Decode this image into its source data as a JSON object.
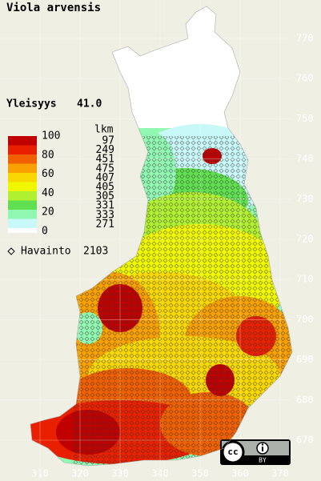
{
  "title": "Viola arvensis",
  "frequency": {
    "label": "Yleisyys",
    "value": "41.0"
  },
  "legend": {
    "scale_labels": [
      "100",
      "80",
      "60",
      "40",
      "20",
      "0"
    ],
    "count_header": "lkm",
    "counts": [
      97,
      249,
      451,
      475,
      407,
      405,
      305,
      331,
      333,
      271
    ],
    "colors": [
      "#c00000",
      "#e82000",
      "#f06000",
      "#f8a000",
      "#f8d800",
      "#f0f800",
      "#b0f030",
      "#60e050",
      "#90f8b0",
      "#c8f8f8"
    ]
  },
  "observation": {
    "label": "Havainto",
    "count": 2103
  },
  "y_axis_labels": [
    770,
    760,
    750,
    740,
    730,
    720,
    710,
    700,
    690,
    680,
    670
  ],
  "x_axis_labels": [
    310,
    320,
    330,
    340,
    350,
    360,
    370
  ],
  "license": {
    "icon": "cc",
    "type": "BY"
  }
}
